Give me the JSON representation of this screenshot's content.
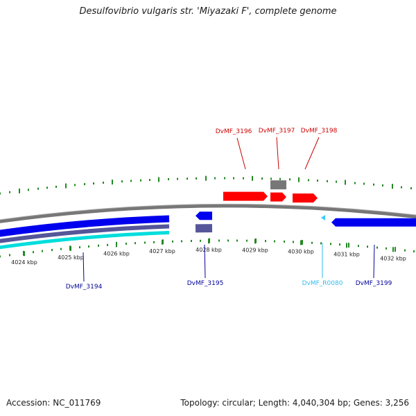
{
  "title": "Desulfovibrio vulgaris str. 'Miyazaki F', complete genome",
  "footer": {
    "accession": "Accession: NC_011769",
    "stats": "Topology: circular; Length: 4,040,304 bp; Genes: 3,256"
  },
  "scale": {
    "unit": "kbp",
    "ticks": [
      "4024 kbp",
      "4025 kbp",
      "4026 kbp",
      "4027 kbp",
      "4028 kbp",
      "4029 kbp",
      "4030 kbp",
      "4031 kbp",
      "4032 kbp"
    ]
  },
  "colors": {
    "forward_gene": "#ff0000",
    "reverse_gene": "#0000ee",
    "rna_feature": "#33ccff",
    "pseudo_feature": "#777777",
    "reverse_pseudo": "#555599",
    "backbone": "#888888",
    "gc_ticks": "#228822",
    "forward_label": "#cc0000",
    "reverse_label": "#000099",
    "rna_label": "#33bbee"
  },
  "genes": [
    {
      "name": "DvMF_3194",
      "strand": "reverse",
      "kind": "CDS"
    },
    {
      "name": "DvMF_3195",
      "strand": "reverse",
      "kind": "CDS"
    },
    {
      "name": "DvMF_3196",
      "strand": "forward",
      "kind": "CDS"
    },
    {
      "name": "DvMF_3197",
      "strand": "forward",
      "kind": "CDS"
    },
    {
      "name": "DvMF_3198",
      "strand": "forward",
      "kind": "CDS"
    },
    {
      "name": "DvMF_R0080",
      "strand": "reverse",
      "kind": "RNA"
    },
    {
      "name": "DvMF_3199",
      "strand": "reverse",
      "kind": "CDS"
    }
  ]
}
